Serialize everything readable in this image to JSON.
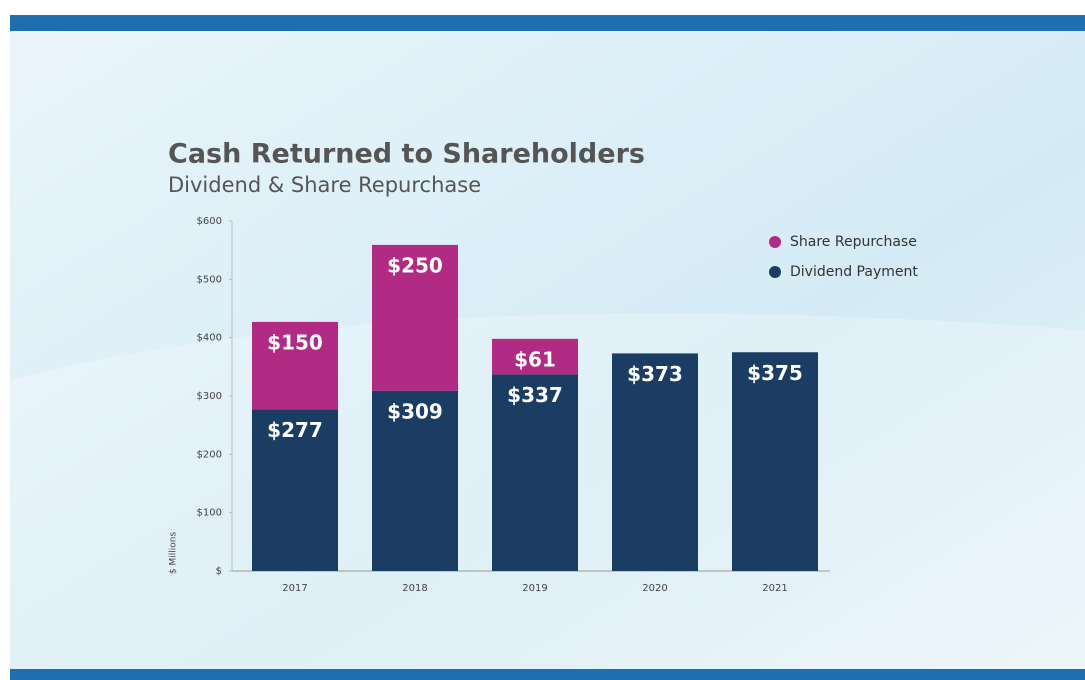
{
  "chart_data": {
    "type": "stacked_bar",
    "title": "Cash Returned to Shareholders",
    "subtitle": "Dividend & Share Repurchase",
    "y_label": "$ Millions",
    "categories": [
      "2017",
      "2018",
      "2019",
      "2020",
      "2021"
    ],
    "series": [
      {
        "name": "Share Repurchase",
        "color": "#b12a84",
        "values": [
          150,
          250,
          61,
          null,
          null
        ],
        "value_labels": [
          "$150",
          "$250",
          "$61",
          null,
          null
        ]
      },
      {
        "name": "Dividend Payment",
        "color": "#1b3d63",
        "values": [
          277,
          309,
          337,
          373,
          375
        ],
        "value_labels": [
          "$277",
          "$309",
          "$337",
          "$373",
          "$375"
        ]
      }
    ],
    "ylim": [
      0,
      600
    ],
    "yticks": [
      {
        "value": 0,
        "label": "$"
      },
      {
        "value": 100,
        "label": "$100"
      },
      {
        "value": 200,
        "label": "$200"
      },
      {
        "value": 300,
        "label": "$300"
      },
      {
        "value": 400,
        "label": "$400"
      },
      {
        "value": 500,
        "label": "$500"
      },
      {
        "value": 600,
        "label": "$600"
      }
    ],
    "legend": "top-right"
  }
}
